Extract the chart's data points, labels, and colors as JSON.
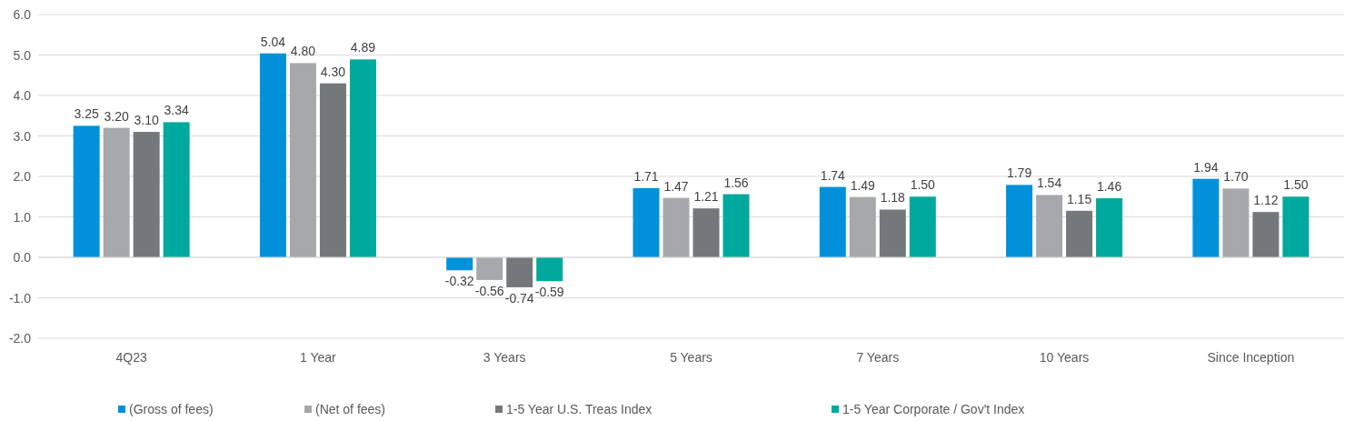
{
  "chart_data": {
    "type": "bar",
    "categories": [
      "4Q23",
      "1 Year",
      "3 Years",
      "5 Years",
      "7 Years",
      "10 Years",
      "Since Inception"
    ],
    "series": [
      {
        "name": "(Gross of fees)",
        "color": "#0091da",
        "values": [
          3.25,
          5.04,
          -0.32,
          1.71,
          1.74,
          1.79,
          1.94
        ],
        "value_labels": [
          "3.25",
          "5.04",
          "-0.32",
          "1.71",
          "1.74",
          "1.79",
          "1.94"
        ]
      },
      {
        "name": "(Net of fees)",
        "color": "#a6a8ab",
        "values": [
          3.2,
          4.8,
          -0.56,
          1.47,
          1.49,
          1.54,
          1.7
        ],
        "value_labels": [
          "3.20",
          "4.80",
          "-0.56",
          "1.47",
          "1.49",
          "1.54",
          "1.70"
        ]
      },
      {
        "name": "1-5 Year U.S. Treas Index",
        "color": "#75787b",
        "values": [
          3.1,
          4.3,
          -0.74,
          1.21,
          1.18,
          1.15,
          1.12
        ],
        "value_labels": [
          "3.10",
          "4.30",
          "-0.74",
          "1.21",
          "1.18",
          "1.15",
          "1.12"
        ]
      },
      {
        "name": "1-5 Year Corporate / Gov't Index",
        "color": "#00a99d",
        "values": [
          3.34,
          4.89,
          -0.59,
          1.56,
          1.5,
          1.46,
          1.5
        ],
        "value_labels": [
          "3.34",
          "4.89",
          "-0.59",
          "1.56",
          "1.50",
          "1.46",
          "1.50"
        ]
      }
    ],
    "ylim": [
      -2,
      6
    ],
    "yticks": [
      {
        "value": -2,
        "label": "-2.0"
      },
      {
        "value": -1,
        "label": "-1.0"
      },
      {
        "value": 0,
        "label": "0.0"
      },
      {
        "value": 1,
        "label": "1.0"
      },
      {
        "value": 2,
        "label": "2.0"
      },
      {
        "value": 3,
        "label": "3.0"
      },
      {
        "value": 4,
        "label": "4.0"
      },
      {
        "value": 5,
        "label": "5.0"
      },
      {
        "value": 6,
        "label": "6.0"
      }
    ],
    "grid": "y",
    "legend": "bottom"
  }
}
